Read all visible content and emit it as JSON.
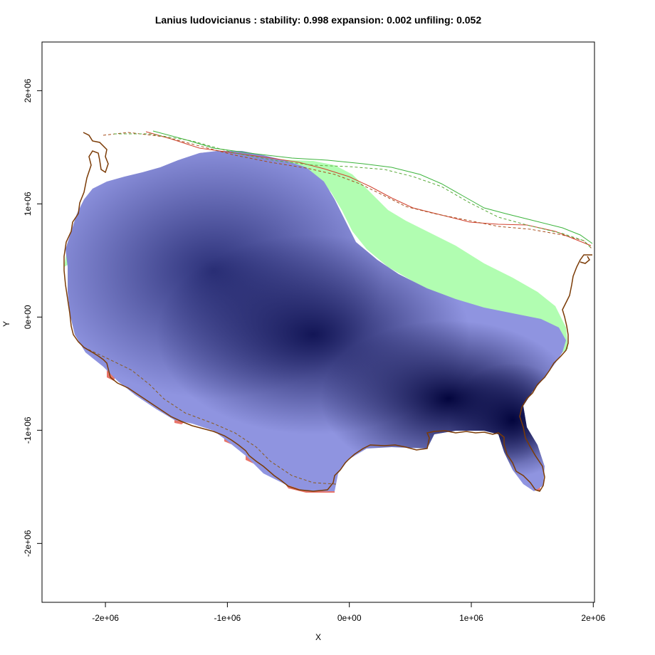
{
  "title": "Lanius ludovicianus : stability: 0.998 expansion: 0.002 unfiling: 0.052",
  "x_axis_label": "X",
  "y_axis_label": "Y",
  "x_ticks": [
    {
      "value": -2000000,
      "label": "-2e+06"
    },
    {
      "value": -1000000,
      "label": "-1e+06"
    },
    {
      "value": 0,
      "label": "0e+00"
    },
    {
      "value": 1000000,
      "label": "1e+06"
    },
    {
      "value": 2000000,
      "label": "2e+06"
    }
  ],
  "y_ticks": [
    {
      "value": -2000000,
      "label": "-2e+06"
    },
    {
      "value": -1000000,
      "label": "-1e+06"
    },
    {
      "value": 0,
      "label": "0e+00"
    },
    {
      "value": 1000000,
      "label": "1e+06"
    },
    {
      "value": 2000000,
      "label": "2e+06"
    }
  ],
  "x_range": [
    -2520000,
    2010000
  ],
  "y_range": [
    -2520000,
    2430000
  ],
  "colors": {
    "stability": "#8f94e0",
    "stability_core": "#060845",
    "expansion": "#e8756a",
    "unfilling": "#b1fdb1",
    "outline": "#7b3b06",
    "current_range_line": "#d2422f",
    "future_range_line": "#3cb43c"
  }
}
